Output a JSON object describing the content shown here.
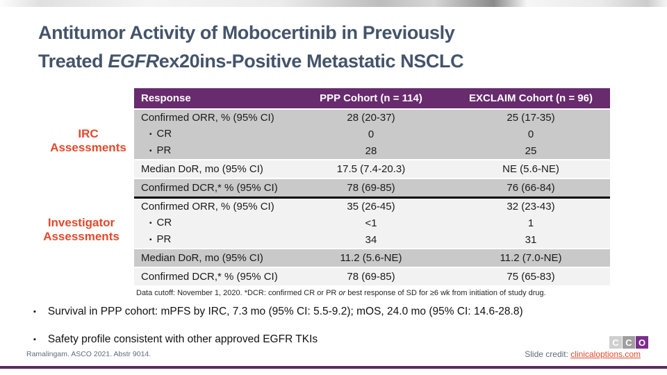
{
  "title": {
    "line1": "Antitumor Activity of Mobocertinib in Previously",
    "line2_pre": "Treated ",
    "line2_italic": "EGFR",
    "line2_post": "ex20ins-Positive Metastatic NSCLC"
  },
  "section_labels": {
    "irc": {
      "line1": "IRC",
      "line2": "Assessments"
    },
    "investigator": {
      "line1": "Investigator",
      "line2": "Assessments"
    }
  },
  "table": {
    "headers": [
      "Response",
      "PPP Cohort (n = 114)",
      "EXCLAIM Cohort (n = 96)"
    ],
    "irc_rows": [
      {
        "label": "Confirmed ORR, % (95% CI)",
        "ppp": "28 (20-37)",
        "exclaim": "25 (17-35)"
      },
      {
        "label": "CR",
        "ppp": "0",
        "exclaim": "0"
      },
      {
        "label": "PR",
        "ppp": "28",
        "exclaim": "25"
      },
      {
        "label": "Median DoR, mo (95% CI)",
        "ppp": "17.5 (7.4-20.3)",
        "exclaim": "NE (5.6-NE)"
      },
      {
        "label": "Confirmed DCR,* % (95% CI)",
        "ppp": "78 (69-85)",
        "exclaim": "76 (66-84)"
      }
    ],
    "inv_rows": [
      {
        "label": "Confirmed ORR, % (95% CI)",
        "ppp": "35 (26-45)",
        "exclaim": "32 (23-43)"
      },
      {
        "label": "CR",
        "ppp": "<1",
        "exclaim": "1"
      },
      {
        "label": "PR",
        "ppp": "34",
        "exclaim": "31"
      },
      {
        "label": "Median DoR, mo (95% CI)",
        "ppp": "11.2 (5.6-NE)",
        "exclaim": "11.2 (7.0-NE)"
      },
      {
        "label": "Confirmed DCR,* % (95% CI)",
        "ppp": "78 (69-85)",
        "exclaim": "75 (65-83)"
      }
    ],
    "footnote": {
      "pre": "Data cutoff: November 1, 2020. *DCR: confirmed CR or PR ",
      "italic": "or",
      "post": " best response of SD for ≥6 wk from initiation of study drug."
    }
  },
  "bullets": [
    "Survival in PPP cohort: mPFS by IRC, 7.3 mo (95% CI: 5.5-9.2); mOS, 24.0 mo (95% CI: 14.6-28.8)",
    "Safety profile consistent with other approved EGFR TKIs"
  ],
  "footer": {
    "reference": "Ramalingam. ASCO 2021. Abstr 9014.",
    "credit_label": "Slide credit: ",
    "credit_link": "clinicaloptions.com"
  },
  "logo": {
    "letters": [
      "C",
      "C",
      "O"
    ]
  },
  "icons": {
    "square_bullet": "▪"
  },
  "colors": {
    "header_purple": "#682B6E",
    "bottom_line_purple": "#5B2C5E",
    "logo_purple": "#7C2E8E",
    "title_color": "#44546A",
    "section_label_red": "#E3492B",
    "link_red": "#E0492B",
    "row_gray": "#C9C9C9",
    "row_light": "#F2F2F2"
  }
}
